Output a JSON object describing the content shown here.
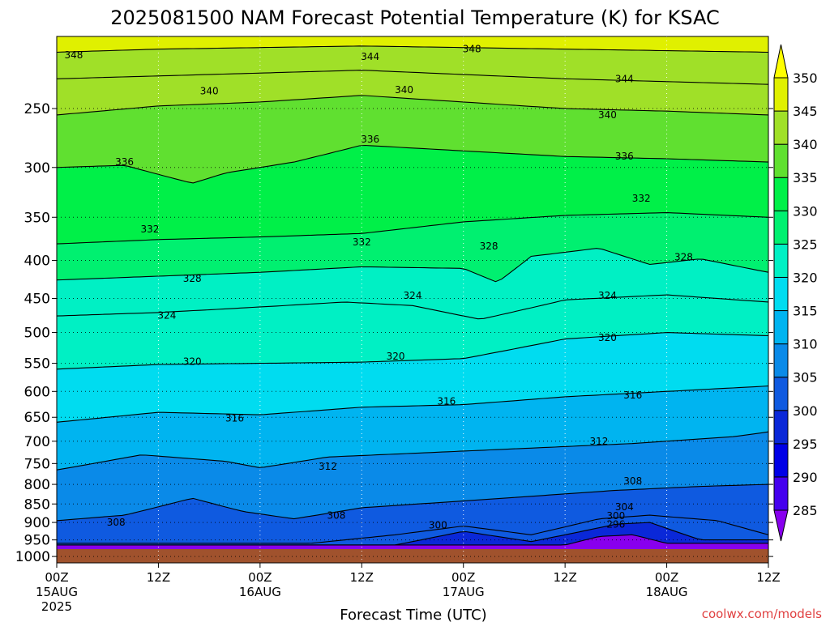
{
  "chart_data": {
    "type": "heatmap",
    "title": "2025081500 NAM Forecast Potential Temperature (K) for KSAC",
    "xlabel": "Forecast Time (UTC)",
    "ylabel": "",
    "credit": "coolwx.com/models",
    "x_range_hours": [
      0,
      84
    ],
    "x_ticks": [
      {
        "hour": 0,
        "label": "00Z",
        "date": "15AUG",
        "year": "2025"
      },
      {
        "hour": 12,
        "label": "12Z",
        "date": "",
        "year": ""
      },
      {
        "hour": 24,
        "label": "00Z",
        "date": "16AUG",
        "year": ""
      },
      {
        "hour": 36,
        "label": "12Z",
        "date": "",
        "year": ""
      },
      {
        "hour": 48,
        "label": "00Z",
        "date": "17AUG",
        "year": ""
      },
      {
        "hour": 60,
        "label": "12Z",
        "date": "",
        "year": ""
      },
      {
        "hour": 72,
        "label": "00Z",
        "date": "18AUG",
        "year": ""
      },
      {
        "hour": 84,
        "label": "12Z",
        "date": "",
        "year": ""
      }
    ],
    "y_axis": {
      "scale": "log-pressure",
      "range_hpa": [
        1020,
        200
      ],
      "reversed": true
    },
    "y_ticks": [
      250,
      300,
      350,
      400,
      450,
      500,
      550,
      600,
      650,
      700,
      750,
      800,
      850,
      900,
      950,
      1000
    ],
    "grid": "dotted",
    "colorbar": {
      "position": "right",
      "levels": [
        285,
        290,
        295,
        300,
        305,
        310,
        315,
        320,
        325,
        330,
        335,
        340,
        345,
        350
      ],
      "colors": [
        "#8800ee",
        "#4400ee",
        "#0000e6",
        "#0a28d8",
        "#0f5ae0",
        "#0a8ae8",
        "#00b4f0",
        "#00dcf0",
        "#00f0c4",
        "#00f070",
        "#00f048",
        "#60e030",
        "#a0e028",
        "#e0f000",
        "#ffff00"
      ]
    },
    "surface_color": "#a0522d",
    "series": [
      {
        "name": "296",
        "hours": [
          60,
          64,
          68,
          72
        ],
        "hpa": [
          965,
          940,
          935,
          960
        ]
      },
      {
        "name": "300",
        "hours": [
          40,
          48,
          56,
          62,
          66,
          70,
          76
        ],
        "hpa": [
          965,
          925,
          955,
          925,
          905,
          900,
          950
        ]
      },
      {
        "name": "304",
        "hours": [
          30,
          40,
          48,
          56,
          64,
          70,
          78,
          84
        ],
        "hpa": [
          960,
          935,
          910,
          935,
          890,
          880,
          895,
          935
        ]
      },
      {
        "name": "308",
        "hours": [
          0,
          8,
          16,
          22,
          28,
          36,
          46,
          56,
          66,
          76,
          84
        ],
        "hpa": [
          895,
          880,
          835,
          870,
          890,
          860,
          845,
          830,
          815,
          805,
          800
        ]
      },
      {
        "name": "312",
        "hours": [
          0,
          10,
          20,
          24,
          32,
          44,
          56,
          68,
          80,
          84
        ],
        "hpa": [
          765,
          730,
          745,
          760,
          735,
          725,
          715,
          705,
          690,
          680
        ]
      },
      {
        "name": "316",
        "hours": [
          0,
          12,
          24,
          36,
          48,
          60,
          72,
          84
        ],
        "hpa": [
          660,
          640,
          645,
          630,
          625,
          610,
          600,
          590
        ]
      },
      {
        "name": "320",
        "hours": [
          0,
          12,
          24,
          36,
          48,
          60,
          72,
          84
        ],
        "hpa": [
          560,
          552,
          550,
          548,
          542,
          510,
          500,
          505
        ]
      },
      {
        "name": "324",
        "hours": [
          0,
          12,
          24,
          34,
          42,
          50,
          60,
          72,
          84
        ],
        "hpa": [
          475,
          470,
          462,
          455,
          460,
          480,
          452,
          445,
          455
        ]
      },
      {
        "name": "328",
        "hours": [
          0,
          12,
          24,
          36,
          48,
          52,
          56,
          64,
          70,
          76,
          84
        ],
        "hpa": [
          425,
          420,
          415,
          408,
          410,
          428,
          395,
          385,
          405,
          398,
          415
        ]
      },
      {
        "name": "332",
        "hours": [
          0,
          12,
          24,
          36,
          48,
          60,
          72,
          84
        ],
        "hpa": [
          380,
          375,
          372,
          368,
          355,
          348,
          345,
          350
        ]
      },
      {
        "name": "336",
        "hours": [
          0,
          8,
          16,
          20,
          28,
          36,
          48,
          60,
          72,
          84
        ],
        "hpa": [
          300,
          298,
          315,
          305,
          295,
          280,
          285,
          290,
          292,
          295
        ]
      },
      {
        "name": "340",
        "hours": [
          0,
          12,
          24,
          36,
          48,
          60,
          72,
          84
        ],
        "hpa": [
          255,
          248,
          245,
          240,
          245,
          250,
          252,
          255
        ]
      },
      {
        "name": "344",
        "hours": [
          0,
          12,
          24,
          36,
          48,
          60,
          72,
          84
        ],
        "hpa": [
          228,
          226,
          224,
          222,
          225,
          228,
          230,
          232
        ]
      },
      {
        "name": "348",
        "hours": [
          0,
          12,
          24,
          36,
          48,
          60,
          72,
          84
        ],
        "hpa": [
          210,
          208,
          207,
          206,
          207,
          208,
          209,
          210
        ]
      }
    ],
    "contour_labels": [
      {
        "text": "348",
        "hour": 2,
        "hpa": 212
      },
      {
        "text": "348",
        "hour": 49,
        "hpa": 208
      },
      {
        "text": "344",
        "hour": 37,
        "hpa": 213
      },
      {
        "text": "344",
        "hour": 67,
        "hpa": 228
      },
      {
        "text": "340",
        "hour": 18,
        "hpa": 237
      },
      {
        "text": "340",
        "hour": 41,
        "hpa": 236
      },
      {
        "text": "340",
        "hour": 65,
        "hpa": 255
      },
      {
        "text": "336",
        "hour": 8,
        "hpa": 295
      },
      {
        "text": "336",
        "hour": 37,
        "hpa": 275
      },
      {
        "text": "336",
        "hour": 67,
        "hpa": 290
      },
      {
        "text": "332",
        "hour": 11,
        "hpa": 363
      },
      {
        "text": "332",
        "hour": 36,
        "hpa": 378
      },
      {
        "text": "332",
        "hour": 69,
        "hpa": 330
      },
      {
        "text": "328",
        "hour": 16,
        "hpa": 423
      },
      {
        "text": "328",
        "hour": 51,
        "hpa": 383
      },
      {
        "text": "328",
        "hour": 74,
        "hpa": 396
      },
      {
        "text": "324",
        "hour": 13,
        "hpa": 474
      },
      {
        "text": "324",
        "hour": 42,
        "hpa": 446
      },
      {
        "text": "324",
        "hour": 65,
        "hpa": 446
      },
      {
        "text": "320",
        "hour": 16,
        "hpa": 547
      },
      {
        "text": "320",
        "hour": 40,
        "hpa": 538
      },
      {
        "text": "320",
        "hour": 65,
        "hpa": 508
      },
      {
        "text": "316",
        "hour": 21,
        "hpa": 652
      },
      {
        "text": "316",
        "hour": 46,
        "hpa": 619
      },
      {
        "text": "316",
        "hour": 68,
        "hpa": 607
      },
      {
        "text": "312",
        "hour": 32,
        "hpa": 757
      },
      {
        "text": "312",
        "hour": 64,
        "hpa": 700
      },
      {
        "text": "308",
        "hour": 7,
        "hpa": 900
      },
      {
        "text": "308",
        "hour": 33,
        "hpa": 881
      },
      {
        "text": "308",
        "hour": 68,
        "hpa": 792
      },
      {
        "text": "304",
        "hour": 67,
        "hpa": 858
      },
      {
        "text": "300",
        "hour": 45,
        "hpa": 908
      },
      {
        "text": "300",
        "hour": 66,
        "hpa": 882
      },
      {
        "text": "296",
        "hour": 66,
        "hpa": 905
      }
    ]
  }
}
